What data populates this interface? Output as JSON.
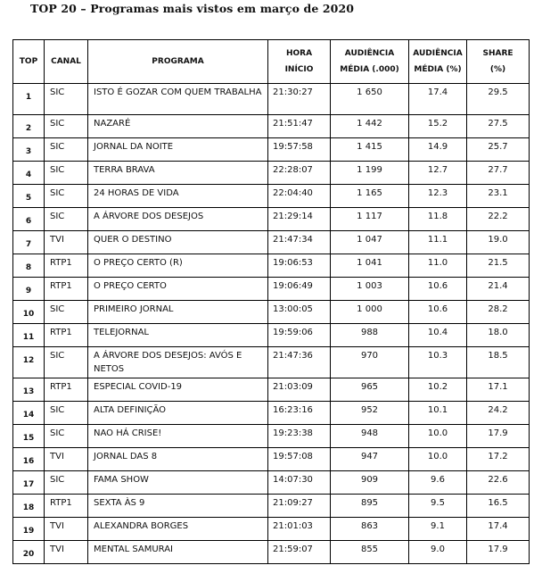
{
  "title": "TOP 20 – Programas mais vistos em março de 2020",
  "headers": {
    "top": "TOP",
    "canal": "CANAL",
    "programa": "PROGRAMA",
    "hora": [
      "HORA",
      "INÍCIO"
    ],
    "aud_media": [
      "AUDIÊNCIA",
      "MÉDIA (.000)"
    ],
    "aud_pct": [
      "AUDIÊNCIA",
      "MÉDIA (%)"
    ],
    "share": [
      "SHARE",
      "(%)"
    ]
  },
  "rows": [
    {
      "rank": "1",
      "canal": "SIC",
      "programa": "ISTO É GOZAR COM QUEM TRABALHA",
      "hora": "21:30:27",
      "aud": "1 650",
      "pct": "17.4",
      "share": "29.5"
    },
    {
      "rank": "2",
      "canal": "SIC",
      "programa": "NAZARÉ",
      "hora": "21:51:47",
      "aud": "1 442",
      "pct": "15.2",
      "share": "27.5"
    },
    {
      "rank": "3",
      "canal": "SIC",
      "programa": "JORNAL DA NOITE",
      "hora": "19:57:58",
      "aud": "1 415",
      "pct": "14.9",
      "share": "25.7"
    },
    {
      "rank": "4",
      "canal": "SIC",
      "programa": "TERRA BRAVA",
      "hora": "22:28:07",
      "aud": "1 199",
      "pct": "12.7",
      "share": "27.7"
    },
    {
      "rank": "5",
      "canal": "SIC",
      "programa": "24 HORAS DE VIDA",
      "hora": "22:04:40",
      "aud": "1 165",
      "pct": "12.3",
      "share": "23.1"
    },
    {
      "rank": "6",
      "canal": "SIC",
      "programa": "A ÁRVORE DOS DESEJOS",
      "hora": "21:29:14",
      "aud": "1 117",
      "pct": "11.8",
      "share": "22.2"
    },
    {
      "rank": "7",
      "canal": "TVI",
      "programa": "QUER O DESTINO",
      "hora": "21:47:34",
      "aud": "1 047",
      "pct": "11.1",
      "share": "19.0"
    },
    {
      "rank": "8",
      "canal": "RTP1",
      "programa": "O PREÇO CERTO (R)",
      "hora": "19:06:53",
      "aud": "1 041",
      "pct": "11.0",
      "share": "21.5"
    },
    {
      "rank": "9",
      "canal": "RTP1",
      "programa": "O PREÇO CERTO",
      "hora": "19:06:49",
      "aud": "1 003",
      "pct": "10.6",
      "share": "21.4"
    },
    {
      "rank": "10",
      "canal": "SIC",
      "programa": "PRIMEIRO JORNAL",
      "hora": "13:00:05",
      "aud": "1 000",
      "pct": "10.6",
      "share": "28.2"
    },
    {
      "rank": "11",
      "canal": "RTP1",
      "programa": "TELEJORNAL",
      "hora": "19:59:06",
      "aud": "988",
      "pct": "10.4",
      "share": "18.0"
    },
    {
      "rank": "12",
      "canal": "SIC",
      "programa": "A ÁRVORE DOS DESEJOS: AVÓS E NETOS",
      "hora": "21:47:36",
      "aud": "970",
      "pct": "10.3",
      "share": "18.5"
    },
    {
      "rank": "13",
      "canal": "RTP1",
      "programa": "ESPECIAL COVID-19",
      "hora": "21:03:09",
      "aud": "965",
      "pct": "10.2",
      "share": "17.1"
    },
    {
      "rank": "14",
      "canal": "SIC",
      "programa": "ALTA DEFINIÇÃO",
      "hora": "16:23:16",
      "aud": "952",
      "pct": "10.1",
      "share": "24.2"
    },
    {
      "rank": "15",
      "canal": "SIC",
      "programa": "NAO HÁ CRISE!",
      "hora": "19:23:38",
      "aud": "948",
      "pct": "10.0",
      "share": "17.9"
    },
    {
      "rank": "16",
      "canal": "TVI",
      "programa": "JORNAL DAS 8",
      "hora": "19:57:08",
      "aud": "947",
      "pct": "10.0",
      "share": "17.2"
    },
    {
      "rank": "17",
      "canal": "SIC",
      "programa": "FAMA SHOW",
      "hora": "14:07:30",
      "aud": "909",
      "pct": "9.6",
      "share": "22.6"
    },
    {
      "rank": "18",
      "canal": "RTP1",
      "programa": "SEXTA ÀS 9",
      "hora": "21:09:27",
      "aud": "895",
      "pct": "9.5",
      "share": "16.5"
    },
    {
      "rank": "19",
      "canal": "TVI",
      "programa": "ALEXANDRA BORGES",
      "hora": "21:01:03",
      "aud": "863",
      "pct": "9.1",
      "share": "17.4"
    },
    {
      "rank": "20",
      "canal": "TVI",
      "programa": "MENTAL SAMURAI",
      "hora": "21:59:07",
      "aud": "855",
      "pct": "9.0",
      "share": "17.9"
    }
  ]
}
